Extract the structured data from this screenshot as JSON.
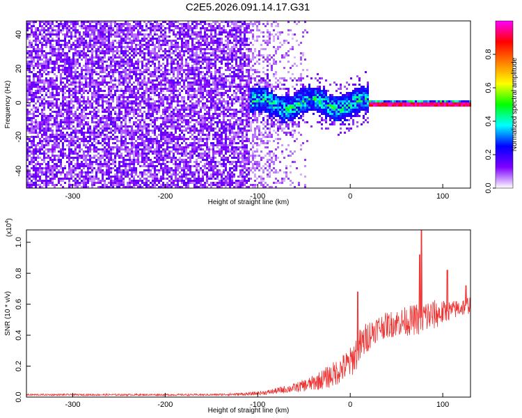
{
  "figure": {
    "title": "C2E5.2026.091.14.17.G31"
  },
  "chart_data": [
    {
      "type": "heatmap",
      "name": "spectrogram",
      "xlabel": "Height of straight line (km)",
      "ylabel": "Frequency (Hz)",
      "xlim": [
        -350,
        130
      ],
      "ylim": [
        -50,
        48
      ],
      "xticks": [
        -300,
        -200,
        -100,
        0,
        100
      ],
      "xtick_labels": [
        "-300",
        "-200",
        "-100",
        "0",
        "100"
      ],
      "yticks": [
        -40,
        -20,
        0,
        20,
        40
      ],
      "ytick_labels": [
        "-40",
        "-20",
        "0",
        "20",
        "40"
      ],
      "regions": [
        {
          "x_range": [
            -350,
            -110
          ],
          "description": "broadband noise",
          "amplitude": 0.2
        },
        {
          "x_range": [
            -110,
            20
          ],
          "center_freq": 0,
          "band_width_hz": 10,
          "amplitude": 0.45
        },
        {
          "x_range": [
            20,
            130
          ],
          "center_freq": 0,
          "band_width_hz": 3,
          "amplitude": 1.0
        }
      ],
      "colorbar": {
        "label": "Normalized spectral amplitude",
        "range": [
          0,
          1
        ],
        "ticks": [
          0.0,
          0.2,
          0.4,
          0.6,
          0.8
        ],
        "tick_labels": [
          "0.0",
          "0.2",
          "0.4",
          "0.6",
          "0.8"
        ],
        "colors": [
          "#ffffff",
          "#7f00ff",
          "#0000ff",
          "#00ffff",
          "#00ff00",
          "#ffff00",
          "#ff8000",
          "#ff0000",
          "#ff00ff"
        ]
      }
    },
    {
      "type": "line",
      "name": "snr",
      "xlabel": "Height of straight line (km)",
      "ylabel": "SNR (10 * v/v)",
      "y_multiplier": "(x10",
      "y_multiplier_exp": "4",
      "y_multiplier_close": ")",
      "xlim": [
        -350,
        130
      ],
      "ylim": [
        0,
        1.08
      ],
      "xticks": [
        -300,
        -200,
        -100,
        0,
        100
      ],
      "xtick_labels": [
        "-300",
        "-200",
        "-100",
        "0",
        "100"
      ],
      "yticks": [
        0.0,
        0.2,
        0.4,
        0.6,
        0.8,
        1.0
      ],
      "ytick_labels": [
        "0.0",
        "0.2",
        "0.4",
        "0.6",
        "0.8",
        "1.0"
      ],
      "color": "#ee3333",
      "series_envelope": {
        "x": [
          -350,
          -150,
          -110,
          -90,
          -60,
          -40,
          -20,
          0,
          10,
          20,
          30,
          50,
          70,
          80,
          90,
          110,
          130
        ],
        "mean": [
          0.015,
          0.015,
          0.02,
          0.03,
          0.06,
          0.09,
          0.14,
          0.22,
          0.32,
          0.4,
          0.45,
          0.48,
          0.5,
          0.52,
          0.53,
          0.56,
          0.6
        ],
        "spread": [
          0.006,
          0.006,
          0.01,
          0.015,
          0.03,
          0.05,
          0.08,
          0.1,
          0.12,
          0.1,
          0.08,
          0.09,
          0.1,
          0.12,
          0.1,
          0.06,
          0.06
        ]
      },
      "peaks": [
        {
          "x": 77,
          "y": 1.08
        },
        {
          "x": 75,
          "y": 0.92
        },
        {
          "x": 8,
          "y": 0.68
        },
        {
          "x": 105,
          "y": 0.82
        },
        {
          "x": 125,
          "y": 0.72
        }
      ]
    }
  ]
}
